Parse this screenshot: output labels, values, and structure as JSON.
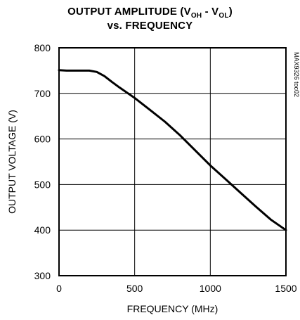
{
  "chart_data": {
    "type": "line",
    "title_line1_prefix": "OUTPUT AMPLITUDE (V",
    "title_line1_sub1": "OH",
    "title_line1_mid": " - V",
    "title_line1_sub2": "OL",
    "title_line1_suffix": ")",
    "title_line2": "vs. FREQUENCY",
    "xlabel": "FREQUENCY (MHz)",
    "ylabel": "OUTPUT VOLTAGE (V)",
    "watermark": "MAX9326 toc02",
    "xlim": [
      0,
      1500
    ],
    "ylim": [
      300,
      800
    ],
    "x_ticks": [
      "0",
      "500",
      "1000",
      "1500"
    ],
    "y_ticks": [
      "300",
      "400",
      "500",
      "600",
      "700",
      "800"
    ],
    "grid": true,
    "series": [
      {
        "x": [
          0,
          50,
          100,
          150,
          200,
          250,
          300,
          350,
          400,
          500,
          600,
          700,
          800,
          900,
          1000,
          1100,
          1200,
          1300,
          1400,
          1500
        ],
        "y": [
          751,
          750,
          750,
          750,
          750,
          747,
          738,
          725,
          713,
          690,
          664,
          638,
          608,
          575,
          542,
          512,
          482,
          452,
          423,
          400
        ]
      }
    ]
  }
}
